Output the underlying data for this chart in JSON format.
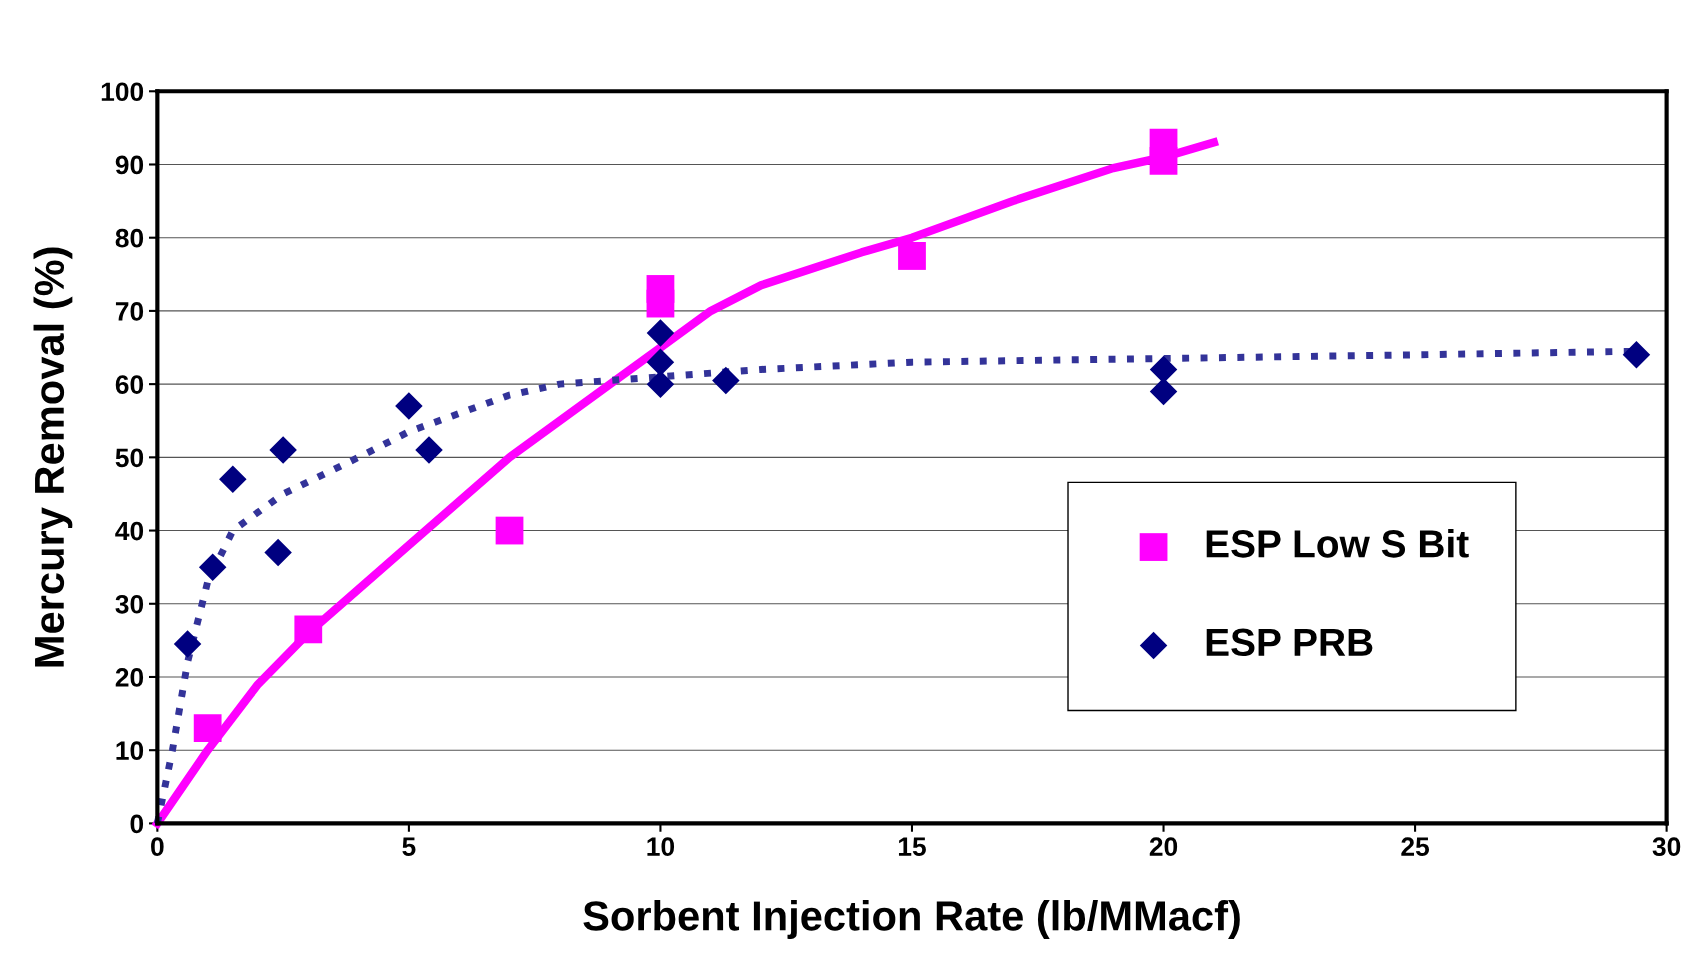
{
  "chart_data": {
    "type": "scatter",
    "xlabel": "Sorbent Injection Rate (lb/MMacf)",
    "ylabel": "Mercury Removal (%)",
    "xlim": [
      0,
      30
    ],
    "xticks": [
      0,
      5,
      10,
      15,
      20,
      25,
      30
    ],
    "ylim": [
      0,
      100
    ],
    "yticks": [
      0,
      10,
      20,
      30,
      40,
      50,
      60,
      70,
      80,
      90,
      100
    ],
    "grid": "y",
    "legend": "right",
    "series": [
      {
        "name": "ESP Low S Bit",
        "marker": "square",
        "color": "#ff00ff",
        "x": [
          1,
          3,
          7,
          10,
          10,
          15,
          20,
          20
        ],
        "values": [
          13,
          26.5,
          40,
          73,
          71,
          77.5,
          93,
          90.5
        ]
      },
      {
        "name": "ESP PRB",
        "marker": "diamond",
        "color": "#000080",
        "x": [
          0.6,
          1.1,
          1.5,
          2.4,
          2.5,
          5,
          5.4,
          10,
          10,
          10,
          11.3,
          20,
          20,
          29.4
        ],
        "values": [
          24.5,
          35,
          47,
          37,
          51,
          57,
          51,
          67,
          63,
          60,
          60.5,
          62,
          59,
          64
        ]
      },
      {
        "type": "line",
        "line_style": "solid",
        "marker": "none",
        "color": "#ff00ff",
        "x": [
          0,
          1,
          2,
          3,
          5,
          7,
          9,
          10,
          11,
          12,
          14,
          15,
          17,
          19,
          20,
          21
        ],
        "values": [
          0,
          10,
          19,
          26,
          38,
          50,
          60,
          65,
          70,
          73.5,
          78,
          80,
          85,
          89.5,
          91,
          93
        ]
      },
      {
        "type": "line",
        "line_style": "dotted",
        "marker": "none",
        "color": "#333399",
        "x": [
          0,
          0.3,
          0.6,
          1,
          1.5,
          2.5,
          4,
          5,
          6,
          7,
          8,
          10,
          12,
          15,
          20,
          25,
          29.5
        ],
        "values": [
          0,
          10,
          22,
          33,
          40,
          45,
          50,
          53.5,
          56,
          58.5,
          60,
          61,
          62,
          63,
          63.5,
          64,
          64.5
        ]
      }
    ]
  }
}
